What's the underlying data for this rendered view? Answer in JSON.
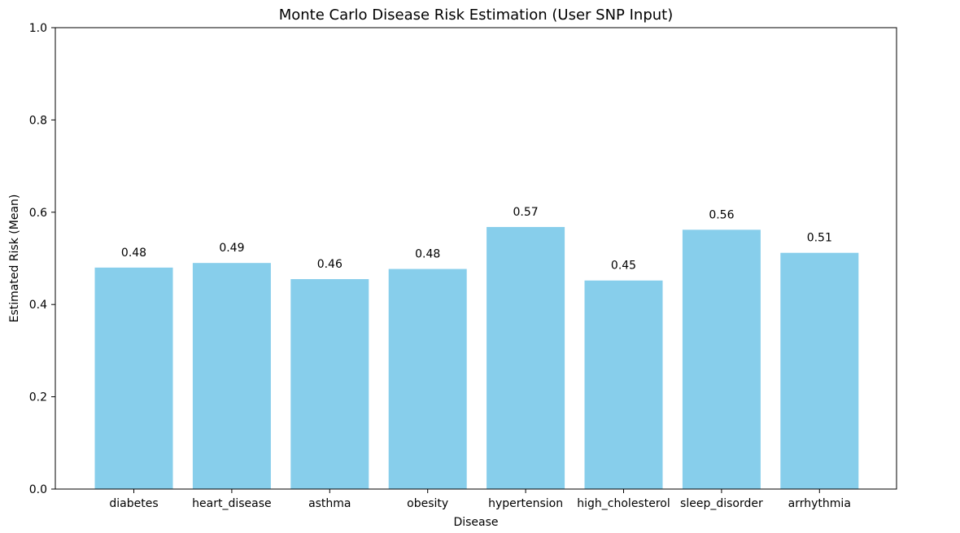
{
  "chart_data": {
    "type": "bar",
    "title": "Monte Carlo Disease Risk Estimation (User SNP Input)",
    "xlabel": "Disease",
    "ylabel": "Estimated Risk (Mean)",
    "categories": [
      "diabetes",
      "heart_disease",
      "asthma",
      "obesity",
      "hypertension",
      "high_cholesterol",
      "sleep_disorder",
      "arrhythmia"
    ],
    "values": [
      0.48,
      0.49,
      0.455,
      0.477,
      0.568,
      0.452,
      0.562,
      0.512
    ],
    "value_labels": [
      "0.48",
      "0.49",
      "0.46",
      "0.48",
      "0.57",
      "0.45",
      "0.56",
      "0.51"
    ],
    "ylim": [
      0,
      1
    ],
    "yticks": [
      0,
      0.2,
      0.4,
      0.6,
      0.8,
      1
    ],
    "ytick_labels": [
      "0.0",
      "0.2",
      "0.4",
      "0.6",
      "0.8",
      "1.0"
    ],
    "grid": false,
    "bar_color": "#87ceeb"
  }
}
